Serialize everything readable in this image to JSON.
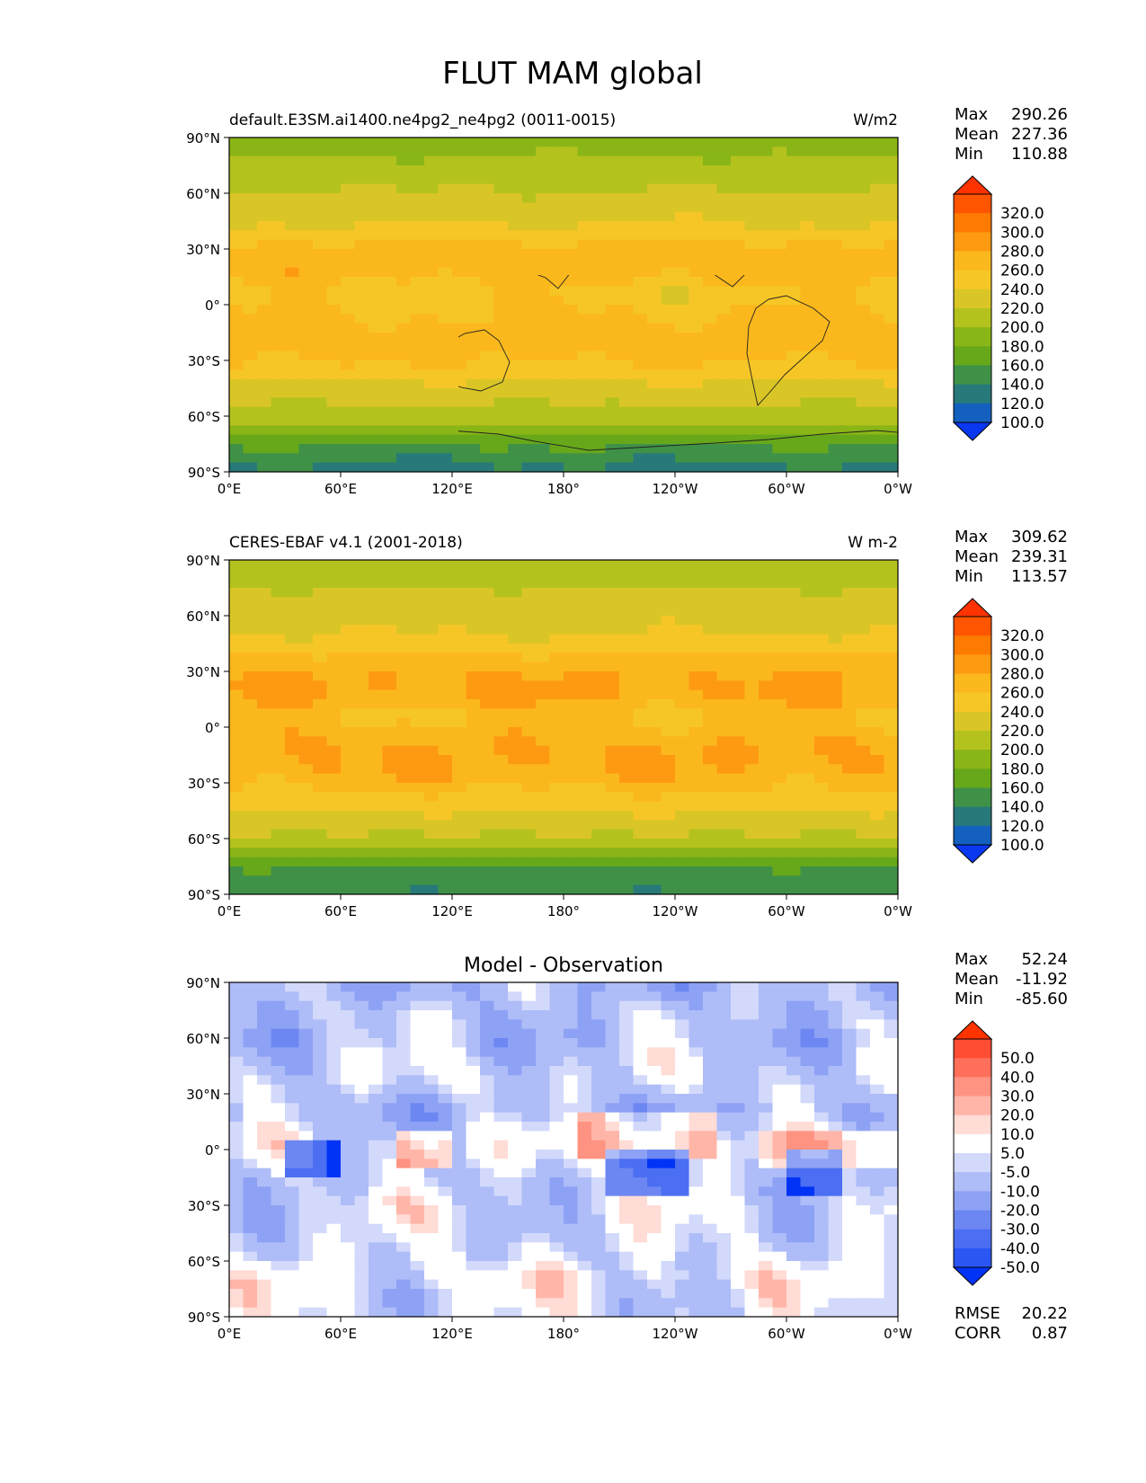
{
  "figure": {
    "title": "FLUT MAM global"
  },
  "chart_data": [
    {
      "type": "heatmap",
      "title": "default.E3SM.ai1400.ne4pg2_ne4pg2 (0011-0015)",
      "units": "W/m2",
      "xticks": [
        "0°E",
        "60°E",
        "120°E",
        "180°",
        "120°W",
        "60°W",
        "0°W"
      ],
      "yticks": [
        "90°N",
        "60°N",
        "30°N",
        "0°",
        "30°S",
        "60°S",
        "90°S"
      ],
      "xlim": [
        0,
        360
      ],
      "ylim": [
        -90,
        90
      ],
      "stats": [
        {
          "label": "Max",
          "value": "290.26"
        },
        {
          "label": "Mean",
          "value": "227.36"
        },
        {
          "label": "Min",
          "value": "110.88"
        }
      ],
      "colorbar": {
        "labels": [
          "320.0",
          "300.0",
          "280.0",
          "260.0",
          "240.0",
          "220.0",
          "200.0",
          "180.0",
          "160.0",
          "140.0",
          "120.0",
          "100.0"
        ],
        "colors": [
          "#ff3300",
          "#ff5500",
          "#ff7a00",
          "#fd9a12",
          "#fbb81c",
          "#f6c626",
          "#d9c626",
          "#b4c21e",
          "#8ab517",
          "#67a81b",
          "#3f9148",
          "#27797a",
          "#1360be",
          "#0a38f0"
        ]
      },
      "zonal_profile": [
        [
          90,
          168
        ],
        [
          85,
          172
        ],
        [
          80,
          180
        ],
        [
          75,
          186
        ],
        [
          70,
          190
        ],
        [
          65,
          196
        ],
        [
          60,
          202
        ],
        [
          55,
          208
        ],
        [
          50,
          212
        ],
        [
          45,
          218
        ],
        [
          40,
          225
        ],
        [
          35,
          240
        ],
        [
          30,
          248
        ],
        [
          25,
          252
        ],
        [
          20,
          250
        ],
        [
          15,
          248
        ],
        [
          10,
          236
        ],
        [
          5,
          230
        ],
        [
          0,
          238
        ],
        [
          -5,
          240
        ],
        [
          -10,
          245
        ],
        [
          -15,
          249
        ],
        [
          -20,
          250
        ],
        [
          -25,
          250
        ],
        [
          -30,
          242
        ],
        [
          -35,
          232
        ],
        [
          -40,
          222
        ],
        [
          -45,
          212
        ],
        [
          -50,
          206
        ],
        [
          -55,
          198
        ],
        [
          -60,
          192
        ],
        [
          -65,
          178
        ],
        [
          -70,
          163
        ],
        [
          -75,
          148
        ],
        [
          -80,
          128
        ],
        [
          -85,
          118
        ],
        [
          -90,
          116
        ]
      ]
    },
    {
      "type": "heatmap",
      "title": "CERES-EBAF v4.1 (2001-2018)",
      "units": "W m-2",
      "xticks": [
        "0°E",
        "60°E",
        "120°E",
        "180°",
        "120°W",
        "60°W",
        "0°W"
      ],
      "yticks": [
        "90°N",
        "60°N",
        "30°N",
        "0°",
        "30°S",
        "60°S",
        "90°S"
      ],
      "xlim": [
        0,
        360
      ],
      "ylim": [
        -90,
        90
      ],
      "stats": [
        {
          "label": "Max",
          "value": "309.62"
        },
        {
          "label": "Mean",
          "value": "239.31"
        },
        {
          "label": "Min",
          "value": "113.57"
        }
      ],
      "colorbar": {
        "labels": [
          "320.0",
          "300.0",
          "280.0",
          "260.0",
          "240.0",
          "220.0",
          "200.0",
          "180.0",
          "160.0",
          "140.0",
          "120.0",
          "100.0"
        ],
        "colors": [
          "#ff3300",
          "#ff5500",
          "#ff7a00",
          "#fd9a12",
          "#fbb81c",
          "#f6c626",
          "#d9c626",
          "#b4c21e",
          "#8ab517",
          "#67a81b",
          "#3f9148",
          "#27797a",
          "#1360be",
          "#0a38f0"
        ]
      },
      "zonal_profile": [
        [
          90,
          186
        ],
        [
          85,
          190
        ],
        [
          80,
          195
        ],
        [
          75,
          200
        ],
        [
          70,
          204
        ],
        [
          65,
          208
        ],
        [
          60,
          212
        ],
        [
          55,
          216
        ],
        [
          50,
          220
        ],
        [
          45,
          228
        ],
        [
          40,
          236
        ],
        [
          35,
          250
        ],
        [
          30,
          256
        ],
        [
          25,
          262
        ],
        [
          20,
          262
        ],
        [
          15,
          258
        ],
        [
          10,
          248
        ],
        [
          5,
          240
        ],
        [
          0,
          246
        ],
        [
          -5,
          252
        ],
        [
          -10,
          258
        ],
        [
          -15,
          262
        ],
        [
          -20,
          260
        ],
        [
          -25,
          256
        ],
        [
          -30,
          250
        ],
        [
          -35,
          240
        ],
        [
          -40,
          230
        ],
        [
          -45,
          222
        ],
        [
          -50,
          212
        ],
        [
          -55,
          204
        ],
        [
          -60,
          196
        ],
        [
          -65,
          182
        ],
        [
          -70,
          160
        ],
        [
          -75,
          142
        ],
        [
          -80,
          128
        ],
        [
          -85,
          125
        ],
        [
          -90,
          124
        ]
      ]
    },
    {
      "type": "heatmap",
      "title": "Model - Observation",
      "units": "",
      "xticks": [
        "0°E",
        "60°E",
        "120°E",
        "180°",
        "120°W",
        "60°W",
        "0°W"
      ],
      "yticks": [
        "90°N",
        "60°N",
        "30°N",
        "0°",
        "30°S",
        "60°S",
        "90°S"
      ],
      "xlim": [
        0,
        360
      ],
      "ylim": [
        -90,
        90
      ],
      "stats": [
        {
          "label": "Max",
          "value": "52.24"
        },
        {
          "label": "Mean",
          "value": "-11.92"
        },
        {
          "label": "Min",
          "value": "-85.60"
        }
      ],
      "extra_stats": [
        {
          "label": "RMSE",
          "value": "20.22"
        },
        {
          "label": "CORR",
          "value": "0.87"
        }
      ],
      "colorbar": {
        "labels": [
          "50.0",
          "40.0",
          "30.0",
          "20.0",
          "10.0",
          "5.0",
          "-5.0",
          "-10.0",
          "-20.0",
          "-30.0",
          "-40.0",
          "-50.0"
        ],
        "colors": [
          "#ff3300",
          "#ff4d33",
          "#ff6f5a",
          "#ff9382",
          "#ffb6a9",
          "#ffdcd6",
          "#ffffff",
          "#d2d9fb",
          "#aebcf8",
          "#8ea2f5",
          "#6d87f2",
          "#4b6ef2",
          "#2b56f4",
          "#0033f5"
        ]
      },
      "zonal_profile": [
        [
          90,
          -18
        ],
        [
          80,
          -14
        ],
        [
          70,
          -12
        ],
        [
          60,
          -16
        ],
        [
          50,
          -10
        ],
        [
          40,
          -8
        ],
        [
          30,
          -12
        ],
        [
          20,
          -18
        ],
        [
          10,
          -10
        ],
        [
          0,
          -6
        ],
        [
          -10,
          -8
        ],
        [
          -20,
          -10
        ],
        [
          -30,
          -6
        ],
        [
          -40,
          -8
        ],
        [
          -50,
          -8
        ],
        [
          -60,
          -6
        ],
        [
          -70,
          -2
        ],
        [
          -80,
          -6
        ],
        [
          -90,
          -8
        ]
      ]
    }
  ]
}
